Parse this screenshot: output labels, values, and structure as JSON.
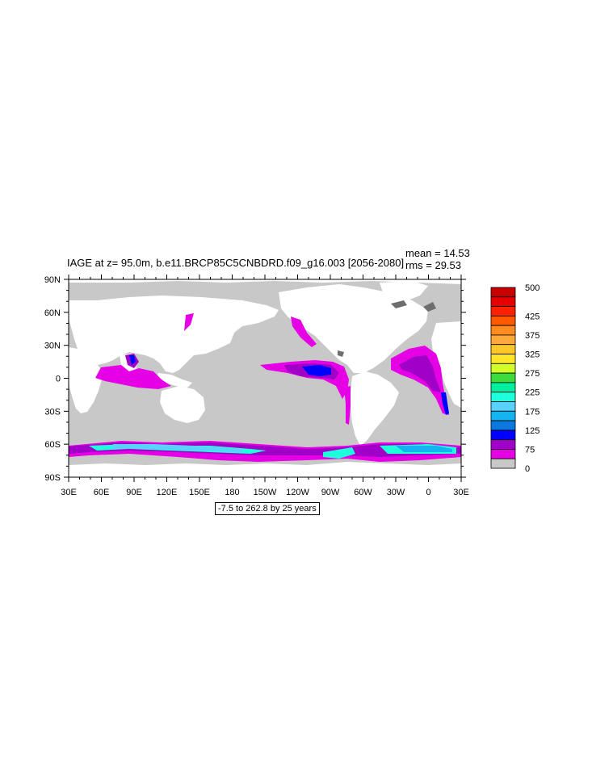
{
  "title": "IAGE at z=  95.0m, b.e11.BRCP85C5CNBDRD.f09_g16.003 [2056-2080]",
  "stats": {
    "mean": "mean = 14.53",
    "rms": "rms = 29.53"
  },
  "range_note": "-7.5 to 262.8 by 25 years",
  "lon_labels": [
    "30E",
    "60E",
    "90E",
    "120E",
    "150E",
    "180",
    "150W",
    "120W",
    "90W",
    "60W",
    "30W",
    "0",
    "30E"
  ],
  "lat_labels": [
    "90N",
    "60N",
    "30N",
    "0",
    "30S",
    "60S",
    "90S"
  ],
  "colorbar": {
    "labels": [
      "500",
      "425",
      "375",
      "325",
      "275",
      "225",
      "175",
      "125",
      "75",
      "0"
    ],
    "colors": [
      "#c80000",
      "#e60000",
      "#ff2000",
      "#ff5a00",
      "#ff8c1e",
      "#ffa83c",
      "#ffc828",
      "#ffe628",
      "#d2ff28",
      "#3cdc3c",
      "#00f0a0",
      "#1effdc",
      "#5ad2ff",
      "#14b4f0",
      "#0a78dc",
      "#0000ff",
      "#a000c8",
      "#e600e6",
      "#c8c8c8"
    ]
  },
  "colors": {
    "land": "#ffffff",
    "ocean_low": "#c8c8c8",
    "magenta": "#e600e6",
    "purple": "#a000c8",
    "blue": "#0000ff",
    "cyan": "#1effdc",
    "ice_dark": "#6e6e6e"
  }
}
